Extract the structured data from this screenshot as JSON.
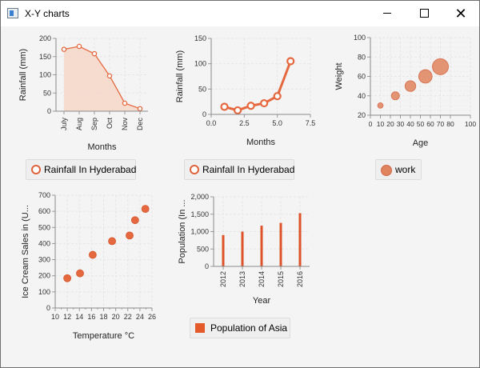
{
  "window": {
    "title": "X-Y charts"
  },
  "colors": {
    "accent": "#e5683f",
    "area_fill": "#f6d6c8",
    "bubble": "#e28a66",
    "grid": "#e6e6e6"
  },
  "legends": {
    "area": "Rainfall In Hyderabad",
    "line": "Rainfall In Hyderabad",
    "bubble": "work",
    "bar": "Population of Asia"
  },
  "chart_data": [
    {
      "id": "area",
      "type": "area",
      "xlabel": "Months",
      "ylabel": "Rainfall (mm)",
      "categories": [
        "July",
        "Aug",
        "Sep",
        "Oct",
        "Nov",
        "Dec"
      ],
      "values": [
        170,
        178,
        158,
        97,
        22,
        7
      ],
      "ylim": [
        0,
        200
      ],
      "yticks": [
        0,
        50,
        100,
        150,
        200
      ],
      "legend": "Rainfall In Hyderabad"
    },
    {
      "id": "line",
      "type": "line",
      "xlabel": "Months",
      "ylabel": "Rainfall (mm)",
      "x": [
        1,
        2,
        3,
        4,
        5,
        6
      ],
      "values": [
        15,
        8,
        17,
        22,
        36,
        105
      ],
      "xlim": [
        0,
        7.5
      ],
      "ylim": [
        0,
        150
      ],
      "xticks": [
        "0.0",
        "2.5",
        "5.0",
        "7.5"
      ],
      "xtickvals": [
        0,
        2.5,
        5,
        7.5
      ],
      "yticks": [
        0,
        50,
        100,
        150
      ],
      "legend": "Rainfall In Hyderabad"
    },
    {
      "id": "bubble",
      "type": "scatter",
      "xlabel": "Age",
      "ylabel": "Weight",
      "x": [
        10,
        25,
        40,
        55,
        70
      ],
      "values": [
        30,
        40,
        50,
        60,
        70
      ],
      "sizes": [
        4,
        6,
        8,
        10,
        12
      ],
      "xlim": [
        0,
        100
      ],
      "ylim": [
        20,
        100
      ],
      "xticks": [
        0,
        10,
        20,
        30,
        40,
        50,
        60,
        70,
        80,
        100
      ],
      "yticks": [
        20,
        40,
        60,
        80,
        100
      ],
      "legend": "work"
    },
    {
      "id": "scatter",
      "type": "scatter",
      "xlabel": "Temperature °C",
      "ylabel": "Ice Cream Sales in (U...",
      "x": [
        12.0,
        14.1,
        16.2,
        19.4,
        22.3,
        23.2,
        24.9
      ],
      "values": [
        185,
        215,
        330,
        415,
        450,
        545,
        615
      ],
      "xlim": [
        10,
        26
      ],
      "ylim": [
        0,
        700
      ],
      "xticks": [
        10,
        12,
        14,
        16,
        18,
        20,
        22,
        24,
        26
      ],
      "yticks": [
        0,
        100,
        200,
        300,
        400,
        500,
        600,
        700
      ]
    },
    {
      "id": "bar",
      "type": "bar",
      "xlabel": "Year",
      "ylabel": "Population (In ...",
      "categories": [
        "2012",
        "2013",
        "2014",
        "2015",
        "2016"
      ],
      "values": [
        900,
        1000,
        1170,
        1250,
        1530
      ],
      "ylim": [
        0,
        2000
      ],
      "yticks": [
        "0",
        "500",
        "1,000",
        "1,500",
        "2,000"
      ],
      "ytickvals": [
        0,
        500,
        1000,
        1500,
        2000
      ],
      "legend": "Population of Asia"
    }
  ]
}
